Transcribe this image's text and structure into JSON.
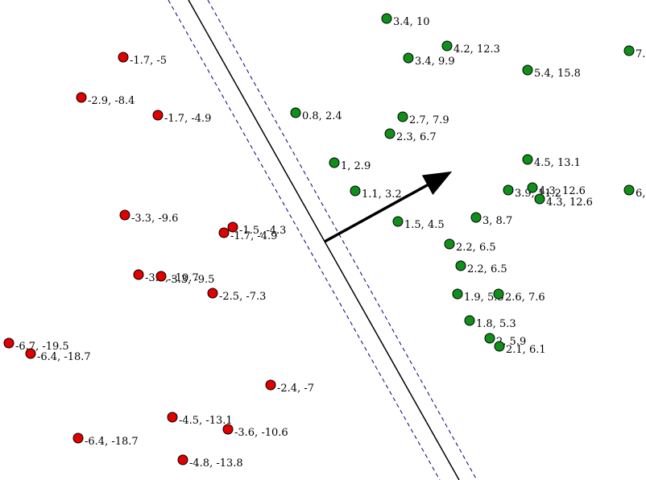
{
  "diagram": {
    "colors": {
      "negative": "#e00000",
      "positive": "#10901a",
      "margin": "#00007a",
      "boundary": "#000000",
      "normal_arrow": "#000000"
    },
    "negative_points": [
      {
        "x": -1.7,
        "y": -5,
        "label": "-1.7, -5"
      },
      {
        "x": -2.9,
        "y": -8.4,
        "label": "-2.9, -8.4"
      },
      {
        "x": -1.7,
        "y": -4.9,
        "label": "-1.7, -4.9"
      },
      {
        "x": -3.3,
        "y": -9.6,
        "label": "-3.3, -9.6"
      },
      {
        "x": -1.5,
        "y": -4.3,
        "label": "-1.5, -4.3"
      },
      {
        "x": -1.7,
        "y": -4.9,
        "label": "-1.7, -4.9"
      },
      {
        "x": -3.7,
        "y": -10.7,
        "label": "-3.7, -10.7"
      },
      {
        "x": -3.3,
        "y": -9.5,
        "label": "-3.3, -9.5"
      },
      {
        "x": -2.5,
        "y": -7.3,
        "label": "-2.5, -7.3"
      },
      {
        "x": -6.7,
        "y": -19.5,
        "label": "-6.7, -19.5"
      },
      {
        "x": -6.4,
        "y": -18.7,
        "label": "-6.4, -18.7"
      },
      {
        "x": -2.4,
        "y": -7,
        "label": "-2.4, -7"
      },
      {
        "x": -4.5,
        "y": -13.1,
        "label": "-4.5, -13.1"
      },
      {
        "x": -3.6,
        "y": -10.6,
        "label": "-3.6, -10.6"
      },
      {
        "x": -6.4,
        "y": -18.7,
        "label": "-6.4, -18.7"
      },
      {
        "x": -4.8,
        "y": -13.8,
        "label": "-4.8, -13.8"
      }
    ],
    "positive_points": [
      {
        "x": 3.4,
        "y": 10,
        "label": "3.4, 10"
      },
      {
        "x": 4.2,
        "y": 12.3,
        "label": "4.2, 12.3"
      },
      {
        "x": 3.4,
        "y": 9.9,
        "label": "3.4, 9.9"
      },
      {
        "x": 7,
        "y": 20,
        "label": "7."
      },
      {
        "x": 5.4,
        "y": 15.8,
        "label": "5.4, 15.8"
      },
      {
        "x": 0.8,
        "y": 2.4,
        "label": "0.8, 2.4"
      },
      {
        "x": 2.7,
        "y": 7.9,
        "label": "2.7, 7.9"
      },
      {
        "x": 2.3,
        "y": 6.7,
        "label": "2.3, 6.7"
      },
      {
        "x": 4.5,
        "y": 13.1,
        "label": "4.5, 13.1"
      },
      {
        "x": 1,
        "y": 2.9,
        "label": "1, 2.9"
      },
      {
        "x": 1.1,
        "y": 3.2,
        "label": "1.1, 3.2"
      },
      {
        "x": 3.9,
        "y": 11.2,
        "label": "3.9, 11.2"
      },
      {
        "x": 4.3,
        "y": 12.6,
        "label": "4.3, 12.6"
      },
      {
        "x": 4.3,
        "y": 12.6,
        "label": "4.3, 12.6"
      },
      {
        "x": 6,
        "y": 17,
        "label": "6,"
      },
      {
        "x": 1.5,
        "y": 4.5,
        "label": "1.5, 4.5"
      },
      {
        "x": 3,
        "y": 8.7,
        "label": "3, 8.7"
      },
      {
        "x": 2.2,
        "y": 6.5,
        "label": "2.2, 6.5"
      },
      {
        "x": 2.2,
        "y": 6.5,
        "label": "2.2, 6.5"
      },
      {
        "x": 1.9,
        "y": 5.5,
        "label": "1.9, 5.5"
      },
      {
        "x": 2.6,
        "y": 7.6,
        "label": "2.6, 7.6"
      },
      {
        "x": 1.8,
        "y": 5.3,
        "label": "1.8, 5.3"
      },
      {
        "x": 2,
        "y": 5.9,
        "label": "2, 5.9"
      },
      {
        "x": 2.1,
        "y": 6.1,
        "label": "2.1, 6.1"
      }
    ]
  }
}
